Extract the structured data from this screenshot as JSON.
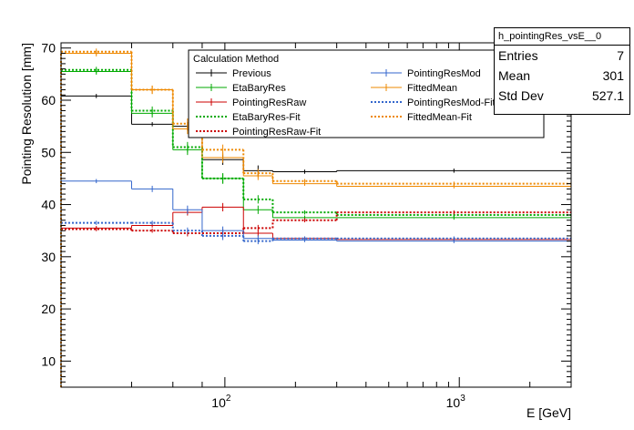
{
  "chart_data": {
    "type": "line",
    "title": "",
    "xlabel": "E [GeV]",
    "ylabel": "Pointing Resolution [mm]",
    "xscale": "log",
    "xlim": [
      20,
      3000
    ],
    "ylim": [
      5,
      71
    ],
    "yticks": [
      10,
      20,
      30,
      40,
      50,
      60,
      70
    ],
    "xticks": [
      {
        "value": 100,
        "base": "10",
        "exp": "2"
      },
      {
        "value": 1000,
        "base": "10",
        "exp": "3"
      }
    ],
    "bin_edges": [
      20,
      40,
      60,
      80,
      120,
      160,
      300,
      3000
    ],
    "legend": {
      "title": "Calculation Method",
      "placement": "top-center"
    },
    "series": [
      {
        "name": "Previous",
        "color": "#000000",
        "style": "solid",
        "values": [
          60.8,
          55.4,
          55.0,
          48.6,
          46.5,
          46.3,
          46.5
        ],
        "errors": [
          0.4,
          0.4,
          0.8,
          1.0,
          1.0,
          0.4,
          0.4
        ]
      },
      {
        "name": "EtaBaryRes",
        "color": "#00aa00",
        "style": "solid",
        "values": [
          65.5,
          57.5,
          50.5,
          45.0,
          39.0,
          37.5,
          37.5
        ],
        "errors": [
          0.6,
          0.8,
          1.0,
          1.0,
          0.8,
          0.4,
          0.4
        ]
      },
      {
        "name": "PointingResRaw",
        "color": "#cc0000",
        "style": "solid",
        "values": [
          35.5,
          36.0,
          38.5,
          39.5,
          34.5,
          33.5,
          33.3
        ],
        "errors": [
          0.4,
          0.4,
          0.6,
          0.8,
          0.6,
          0.4,
          0.4
        ]
      },
      {
        "name": "EtaBaryRes-Fit",
        "color": "#00aa00",
        "style": "dotted",
        "values": [
          65.8,
          58.0,
          51.0,
          45.0,
          41.0,
          38.5,
          38.0
        ],
        "errors": [
          0.6,
          0.8,
          1.0,
          1.0,
          0.8,
          0.4,
          0.4
        ]
      },
      {
        "name": "PointingResRaw-Fit",
        "color": "#cc0000",
        "style": "dotted",
        "values": [
          35.3,
          35.0,
          34.5,
          34.5,
          35.5,
          37.0,
          38.5
        ],
        "errors": [
          0.4,
          0.4,
          0.6,
          0.8,
          0.6,
          0.4,
          0.4
        ]
      },
      {
        "name": "PointingResMod",
        "color": "#3366cc",
        "style": "solid",
        "values": [
          44.5,
          43.0,
          39.0,
          35.0,
          33.5,
          33.2,
          33.0
        ],
        "errors": [
          0.4,
          0.6,
          0.8,
          0.8,
          0.6,
          0.4,
          0.4
        ]
      },
      {
        "name": "FittedMean",
        "color": "#ee8800",
        "style": "solid",
        "values": [
          69.0,
          62.0,
          54.5,
          49.0,
          45.5,
          44.0,
          43.5
        ],
        "errors": [
          0.6,
          0.8,
          1.0,
          1.0,
          0.8,
          0.4,
          0.4
        ]
      },
      {
        "name": "PointingResMod-Fit",
        "color": "#3366cc",
        "style": "dotted",
        "values": [
          36.5,
          36.5,
          35.0,
          34.0,
          33.0,
          33.5,
          33.5
        ],
        "errors": [
          0.4,
          0.4,
          0.6,
          0.8,
          0.6,
          0.4,
          0.4
        ]
      },
      {
        "name": "FittedMean-Fit",
        "color": "#ee8800",
        "style": "dotted",
        "values": [
          69.3,
          62.0,
          55.5,
          50.5,
          46.0,
          44.5,
          44.0
        ],
        "errors": [
          0.6,
          0.8,
          1.0,
          1.0,
          0.8,
          0.4,
          0.4
        ]
      }
    ]
  },
  "stats": {
    "title": "h_pointingRes_vsE__0",
    "rows": [
      {
        "label": "Entries",
        "value": "7"
      },
      {
        "label": "Mean",
        "value": "301"
      },
      {
        "label": "Std Dev",
        "value": "527.1"
      }
    ]
  }
}
